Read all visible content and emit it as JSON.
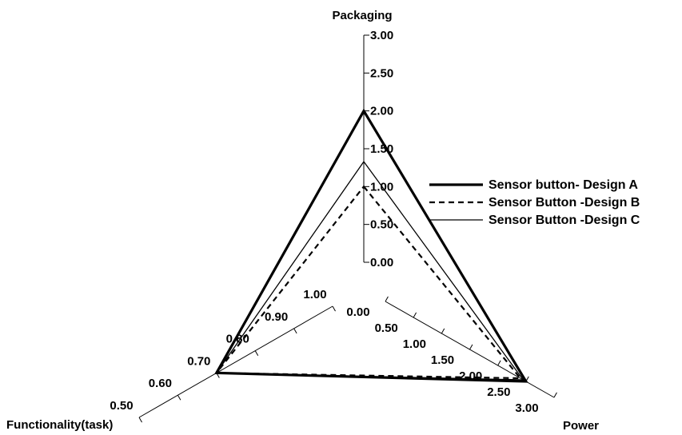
{
  "chart_data": {
    "type": "radar",
    "axes": [
      {
        "name": "Packaging",
        "ticks": [
          "0.00",
          "0.50",
          "1.00",
          "1.50",
          "2.00",
          "2.50",
          "3.00"
        ],
        "range": [
          0,
          3
        ]
      },
      {
        "name": "Power",
        "ticks": [
          "0.00",
          "0.50",
          "1.00",
          "1.50",
          "2.00",
          "2.50",
          "3.00"
        ],
        "range": [
          0,
          3
        ]
      },
      {
        "name": "Functionality(task)",
        "ticks": [
          "0.50",
          "0.60",
          "0.70",
          "0.80",
          "0.90",
          "1.00"
        ],
        "range": [
          0.5,
          1.0
        ]
      }
    ],
    "series": [
      {
        "name": "Sensor button- Design A",
        "style": "thick",
        "values": {
          "Packaging": 2.0,
          "Power": 2.5,
          "Functionality(task)": 0.7
        }
      },
      {
        "name": "Sensor Button -Design B",
        "style": "dashed",
        "values": {
          "Packaging": 1.0,
          "Power": 2.4,
          "Functionality(task)": 0.7
        }
      },
      {
        "name": "Sensor Button -Design C",
        "style": "thin",
        "values": {
          "Packaging": 1.33,
          "Power": 2.45,
          "Functionality(task)": 0.7
        }
      }
    ],
    "legend": "right"
  }
}
